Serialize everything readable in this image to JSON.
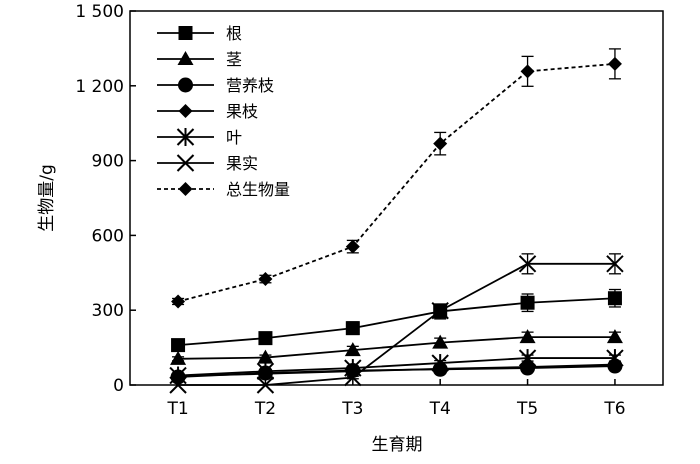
{
  "chart_data": {
    "type": "line",
    "xlabel": "生育期",
    "ylabel": "生物量/g",
    "categories": [
      "T1",
      "T2",
      "T3",
      "T4",
      "T5",
      "T6"
    ],
    "ylim": [
      0,
      1500
    ],
    "yticks": [
      0,
      300,
      600,
      900,
      1200,
      1500
    ],
    "ytick_labels": [
      "0",
      "300",
      "600",
      "900",
      "1 200",
      "1 500"
    ],
    "grid": false,
    "legend_position": "top-left",
    "series": [
      {
        "name": "根",
        "marker": "square",
        "dashed": false,
        "values": [
          160,
          188,
          228,
          295,
          330,
          348
        ],
        "errors": [
          15,
          20,
          25,
          30,
          35,
          35
        ]
      },
      {
        "name": "茎",
        "marker": "triangle",
        "dashed": false,
        "values": [
          105,
          110,
          140,
          170,
          192,
          192
        ],
        "errors": [
          8,
          10,
          15,
          18,
          20,
          20
        ]
      },
      {
        "name": "营养枝",
        "marker": "circle",
        "dashed": false,
        "values": [
          32,
          48,
          58,
          63,
          68,
          76
        ],
        "errors": [
          5,
          5,
          6,
          6,
          6,
          6
        ]
      },
      {
        "name": "果枝",
        "marker": "diamond",
        "dashed": false,
        "values": [
          36,
          45,
          55,
          65,
          72,
          82
        ],
        "errors": [
          4,
          5,
          5,
          6,
          6,
          6
        ]
      },
      {
        "name": "叶",
        "marker": "asterisk",
        "dashed": false,
        "values": [
          38,
          55,
          68,
          88,
          108,
          108
        ],
        "errors": [
          5,
          6,
          8,
          10,
          12,
          12
        ]
      },
      {
        "name": "果实",
        "marker": "x",
        "dashed": false,
        "values": [
          0,
          0,
          30,
          298,
          486,
          486
        ],
        "errors": [
          0,
          0,
          5,
          20,
          40,
          40
        ]
      },
      {
        "name": "总生物量",
        "marker": "diamond",
        "dashed": true,
        "values": [
          335,
          425,
          555,
          968,
          1258,
          1288
        ],
        "errors": [
          12,
          15,
          25,
          45,
          60,
          60
        ]
      }
    ]
  }
}
